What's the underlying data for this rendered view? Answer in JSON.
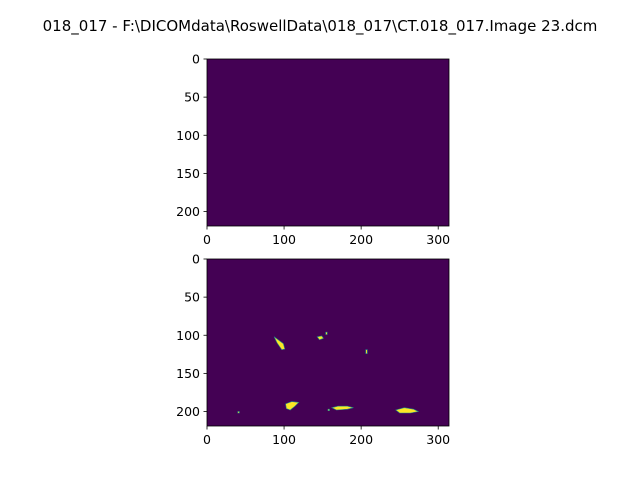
{
  "figure": {
    "title": "018_017 - F:\\DICOMdata\\RoswellData\\018_017\\CT.018_017.Image 23.dcm"
  },
  "colors": {
    "background_value": "#440154",
    "feature_value": "#fde725",
    "feature_edge": "#21918c",
    "axis": "#000000"
  },
  "chart_data": [
    {
      "type": "heatmap",
      "title": "",
      "xlabel": "",
      "ylabel": "",
      "xlim": [
        0,
        314
      ],
      "ylim": [
        219,
        0
      ],
      "x_ticks": [
        0,
        100,
        200,
        300
      ],
      "y_ticks": [
        0,
        50,
        100,
        150,
        200
      ],
      "grid": false,
      "colormap": "viridis",
      "note_values": "all pixels at minimum value (0)",
      "features": []
    },
    {
      "type": "heatmap",
      "title": "",
      "xlabel": "",
      "ylabel": "",
      "xlim": [
        0,
        314
      ],
      "ylim": [
        219,
        0
      ],
      "x_ticks": [
        0,
        100,
        200,
        300
      ],
      "y_ticks": [
        0,
        50,
        100,
        150,
        200
      ],
      "grid": false,
      "colormap": "viridis",
      "features": [
        {
          "id": "blob-a",
          "points": [
            [
              87,
              102
            ],
            [
              99,
              111
            ],
            [
              101,
              118
            ],
            [
              97,
              119
            ],
            [
              91,
              110
            ]
          ]
        },
        {
          "id": "blob-b",
          "points": [
            [
              143,
              102
            ],
            [
              149,
              101
            ],
            [
              151,
              104
            ],
            [
              146,
              106
            ]
          ]
        },
        {
          "id": "blob-c",
          "points": [
            [
              154,
              96
            ],
            [
              156,
              96
            ],
            [
              156,
              99
            ],
            [
              154,
              99
            ]
          ]
        },
        {
          "id": "blob-d",
          "points": [
            [
              206,
              119
            ],
            [
              208,
              119
            ],
            [
              208,
              124
            ],
            [
              206,
              124
            ]
          ]
        },
        {
          "id": "blob-e",
          "points": [
            [
              102,
              190
            ],
            [
              110,
              187
            ],
            [
              119,
              188
            ],
            [
              114,
              193
            ],
            [
              108,
              198
            ],
            [
              103,
              196
            ]
          ]
        },
        {
          "id": "blob-f",
          "points": [
            [
              162,
              195
            ],
            [
              170,
              193
            ],
            [
              182,
              193
            ],
            [
              190,
              195
            ],
            [
              182,
              197
            ],
            [
              168,
              198
            ]
          ]
        },
        {
          "id": "blob-g",
          "points": [
            [
              245,
              198
            ],
            [
              256,
              195
            ],
            [
              268,
              197
            ],
            [
              274,
              200
            ],
            [
              264,
              202
            ],
            [
              250,
              202
            ]
          ]
        },
        {
          "id": "blob-h",
          "points": [
            [
              40,
              200
            ],
            [
              42,
              200
            ],
            [
              42,
              202
            ],
            [
              40,
              202
            ]
          ]
        },
        {
          "id": "blob-i",
          "points": [
            [
              157,
              197
            ],
            [
              159,
              197
            ],
            [
              159,
              199
            ],
            [
              157,
              199
            ]
          ]
        }
      ]
    }
  ]
}
